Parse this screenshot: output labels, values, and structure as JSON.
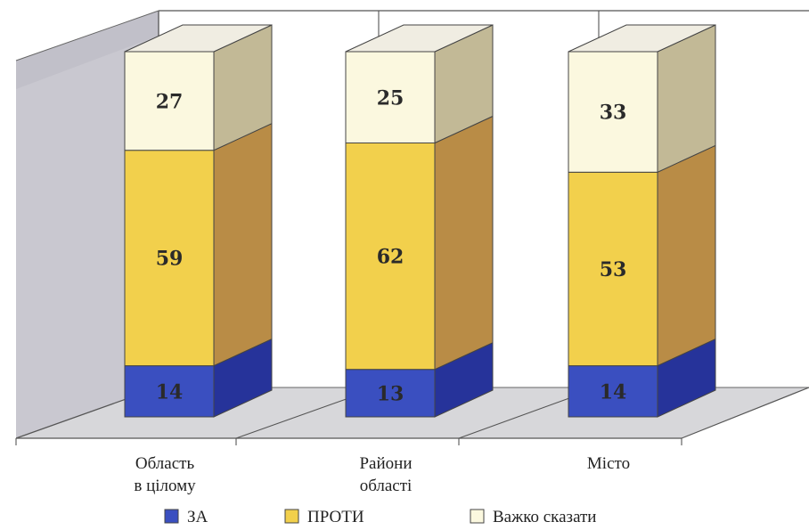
{
  "chart_data": {
    "type": "bar",
    "stacked": true,
    "three_d": true,
    "categories": [
      [
        "Область",
        "в цілому"
      ],
      [
        "Райони",
        "області"
      ],
      [
        "Місто"
      ]
    ],
    "series": [
      {
        "name": "ЗА",
        "values": [
          14,
          13,
          14
        ],
        "color": "#3a4fc0",
        "side_color": "#26339a",
        "top_color": "#5d6fd2"
      },
      {
        "name": "ПРОТИ",
        "values": [
          59,
          62,
          53
        ],
        "color": "#f2d04c",
        "side_color": "#b98c46",
        "top_color": "#f7de78"
      },
      {
        "name": "Важко сказати",
        "values": [
          27,
          25,
          33
        ],
        "color": "#fbf8df",
        "side_color": "#c2b996",
        "top_color": "#f0ede2"
      }
    ],
    "ylim": [
      0,
      100
    ],
    "legend_position": "bottom",
    "grid": true
  },
  "colors": {
    "wall_back": "#ffffff",
    "wall_left": "#c9c8d0",
    "floor": "#d7d7da",
    "grid_line": "#555555"
  }
}
